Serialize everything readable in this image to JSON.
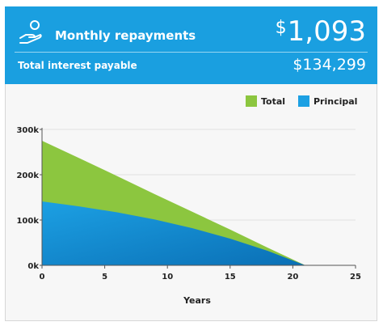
{
  "header": {
    "title": "Monthly repayments",
    "currency_symbol": "$",
    "monthly_amount": "1,093",
    "interest_label": "Total interest payable",
    "interest_value": "$134,299",
    "icon": "hand-coin-icon"
  },
  "colors": {
    "header_bg": "#1a9fe0",
    "total": "#8cc63f",
    "principal": "#1ca0e3"
  },
  "chart_data": {
    "type": "area",
    "xlabel": "Years",
    "ylabel": "",
    "xlim": [
      0,
      25
    ],
    "ylim": [
      0,
      300000
    ],
    "x_ticks": [
      "0",
      "5",
      "10",
      "15",
      "20",
      "25"
    ],
    "y_ticks": [
      "0k",
      "100k",
      "200k",
      "300k"
    ],
    "legend_position": "top-right",
    "x": [
      0,
      3,
      6,
      9,
      12,
      15,
      18,
      21
    ],
    "series": [
      {
        "name": "Total",
        "color": "#8cc63f",
        "values": [
          275000,
          236000,
          197000,
          157000,
          118000,
          79000,
          39000,
          0
        ]
      },
      {
        "name": "Principal",
        "color": "#1ca0e3",
        "values": [
          141000,
          130000,
          117000,
          101000,
          82000,
          59000,
          32000,
          0
        ]
      }
    ]
  }
}
